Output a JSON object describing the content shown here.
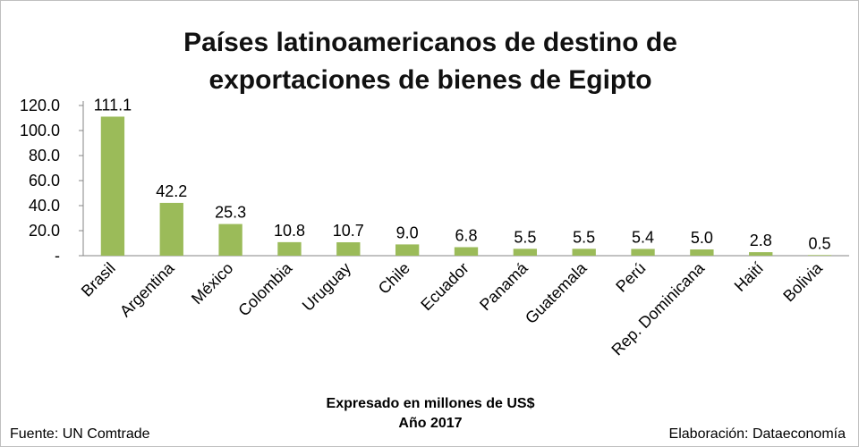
{
  "chart_data": {
    "type": "bar",
    "title": [
      "Países latinoamericanos de destino de",
      "exportaciones de bienes de Egipto"
    ],
    "categories": [
      "Brasil",
      "Argentina",
      "México",
      "Colombia",
      "Uruguay",
      "Chile",
      "Ecuador",
      "Panamá",
      "Guatemala",
      "Perú",
      "Rep. Dominicana",
      "Haití",
      "Bolivia"
    ],
    "values": [
      111.1,
      42.2,
      25.3,
      10.8,
      10.7,
      9.0,
      6.8,
      5.5,
      5.5,
      5.4,
      5.0,
      2.8,
      0.5
    ],
    "value_labels": [
      "111.1",
      "42.2",
      "25.3",
      "10.8",
      "10.7",
      "9.0",
      "6.8",
      "5.5",
      "5.5",
      "5.4",
      "5.0",
      "2.8",
      "0.5"
    ],
    "ylim": [
      0,
      120
    ],
    "yticks": [
      "-",
      "20.0",
      "40.0",
      "60.0",
      "80.0",
      "100.0",
      "120.0"
    ],
    "ytick_values": [
      0,
      20,
      40,
      60,
      80,
      100,
      120
    ],
    "grid": false,
    "legend": "none",
    "bar_color": "#9bbb59"
  },
  "notes": {
    "line1": "Expresado en millones de US$",
    "line2": "Año 2017"
  },
  "source": "Fuente: UN Comtrade",
  "credit": "Elaboración: Dataeconomía"
}
